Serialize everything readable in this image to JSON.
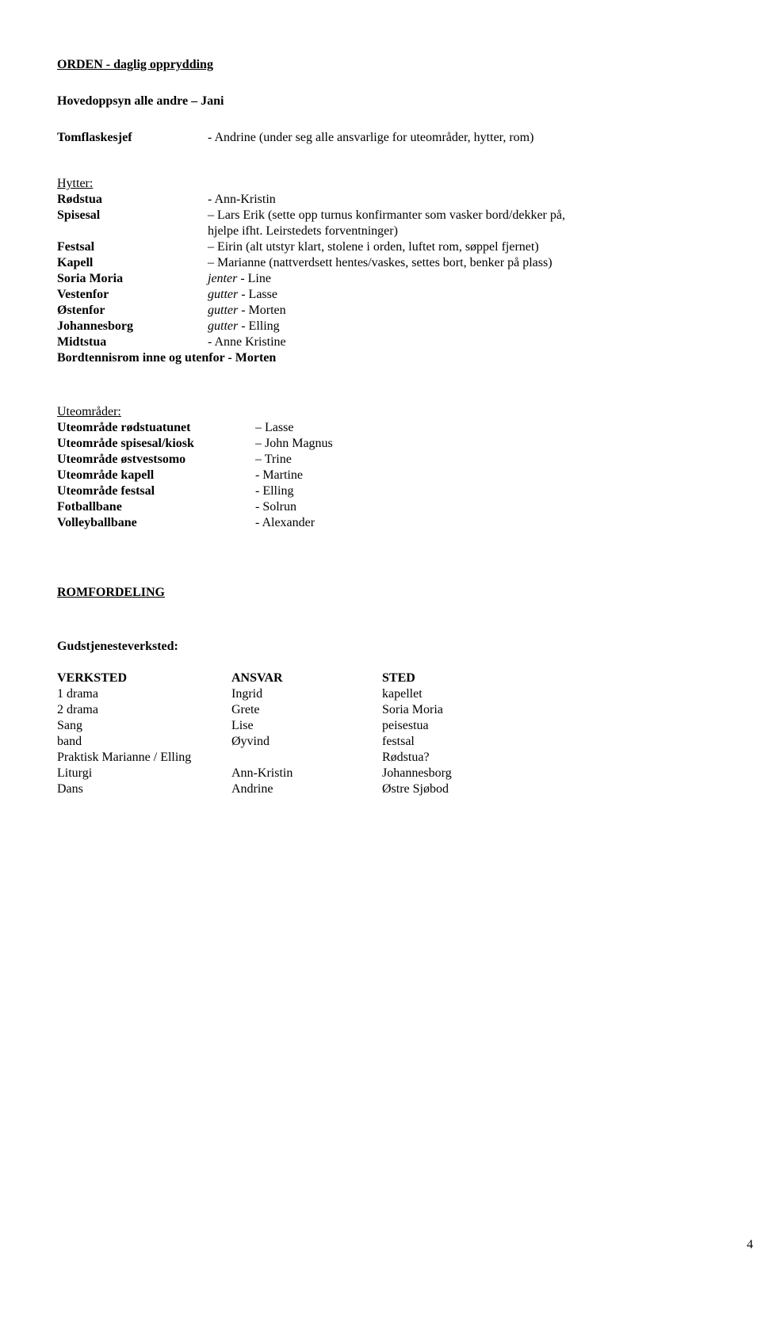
{
  "title": "ORDEN - daglig opprydding",
  "hovedoppsyn": "Hovedoppsyn alle andre – Jani",
  "tomflaskesjef": {
    "label": "Tomflaskesjef",
    "value": "- Andrine (under seg alle ansvarlige for uteområder, hytter, rom)"
  },
  "hytter_heading": "Hytter:",
  "hytter": {
    "rodstua": {
      "label": "Rødstua",
      "value": "- Ann-Kristin"
    },
    "spisesal": {
      "label": "Spisesal",
      "line1": "– Lars Erik (sette opp turnus konfirmanter som vasker bord/dekker på,",
      "line2": "hjelpe ifht. Leirstedets forventninger)"
    },
    "festsal": {
      "label": "Festsal",
      "value": "– Eirin (alt utstyr klart, stolene i orden, luftet rom, søppel fjernet)"
    },
    "kapell": {
      "label": "Kapell",
      "value": "– Marianne (nattverdsett hentes/vaskes, settes bort, benker på plass)"
    },
    "soria": {
      "label": "Soria Moria",
      "ital": "jenter",
      "rest": "  - Line"
    },
    "vestenfor": {
      "label": "Vestenfor",
      "ital": "gutter",
      "rest": "  - Lasse"
    },
    "ostenfor": {
      "label": "Østenfor",
      "ital": "gutter",
      "rest": "  - Morten"
    },
    "johannesborg": {
      "label": "Johannesborg",
      "ital": "gutter",
      "rest": "  - Elling"
    },
    "midtstua": {
      "label": "Midtstua",
      "value": "- Anne Kristine"
    },
    "bordtennis": "Bordtennisrom inne og utenfor - Morten"
  },
  "uteomrader_heading": "Uteområder:",
  "uteomrader": {
    "rodstuatunet": {
      "label": "Uteområde rødstuatunet",
      "value": "– Lasse"
    },
    "spisesal_kiosk": {
      "label": "Uteområde spisesal/kiosk",
      "value": "– John Magnus"
    },
    "ostvestsomo": {
      "label": "Uteområde østvestsomo",
      "value": "– Trine"
    },
    "kapell": {
      "label": "Uteområde kapell",
      "value": "- Martine"
    },
    "festsal": {
      "label": "Uteområde festsal",
      "value": "- Elling"
    },
    "fotballbane": {
      "label": "Fotballbane",
      "value": "- Solrun"
    },
    "volleyballbane": {
      "label": "Volleyballbane",
      "value": "- Alexander"
    }
  },
  "romfordeling": "ROMFORDELING",
  "gudstjeneste": "Gudstjenesteverksted:",
  "table_headers": {
    "c1": "VERKSTED",
    "c2": "ANSVAR",
    "c3": "STED"
  },
  "table": [
    {
      "c1": "1 drama",
      "c2": "Ingrid",
      "c3": "kapellet"
    },
    {
      "c1": "2 drama",
      "c2": "Grete",
      "c3": "Soria Moria"
    },
    {
      "c1": "Sang",
      "c2": "Lise",
      "c3": "peisestua"
    },
    {
      "c1": "band",
      "c2": "Øyvind",
      "c3": "festsal"
    }
  ],
  "praktisk": {
    "left": "Praktisk Marianne / Elling",
    "right": "Rødstua?"
  },
  "liturgi": {
    "c1": "Liturgi",
    "c2": "Ann-Kristin",
    "c3": "Johannesborg"
  },
  "dans": {
    "c1": "Dans",
    "c2": "Andrine",
    "c3": "Østre Sjøbod"
  },
  "page_number": "4"
}
